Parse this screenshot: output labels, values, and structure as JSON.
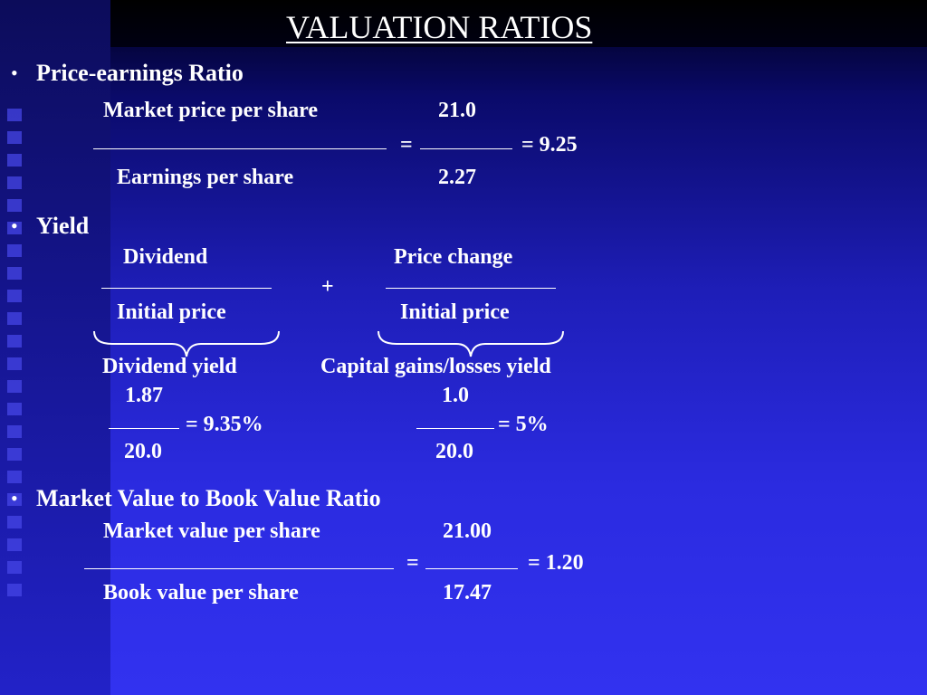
{
  "title": "VALUATION RATIOS",
  "bullet_glyph": "•",
  "pe": {
    "heading": "Price-earnings Ratio",
    "numerator_label": "Market price per share",
    "numerator_value": "21.0",
    "equals": "=",
    "result": "= 9.25",
    "denominator_label": "Earnings per share",
    "denominator_value": "2.27"
  },
  "yield": {
    "heading": "Yield",
    "left_numerator": "Dividend",
    "left_denominator": "Initial price",
    "plus": "+",
    "right_numerator": "Price change",
    "right_denominator": "Initial price",
    "left_brace_label": "Dividend yield",
    "right_brace_label": "Capital gains/losses yield",
    "dy_numerator": "1.87",
    "dy_result": "= 9.35%",
    "dy_denominator": "20.0",
    "cg_numerator": "1.0",
    "cg_result": "= 5%",
    "cg_denominator": "20.0"
  },
  "mb": {
    "heading": "Market Value to Book Value Ratio",
    "numerator_label": "Market value per share",
    "numerator_value": "21.00",
    "equals": "=",
    "result": "= 1.20",
    "denominator_label": "Book value per share",
    "denominator_value": "17.47"
  }
}
